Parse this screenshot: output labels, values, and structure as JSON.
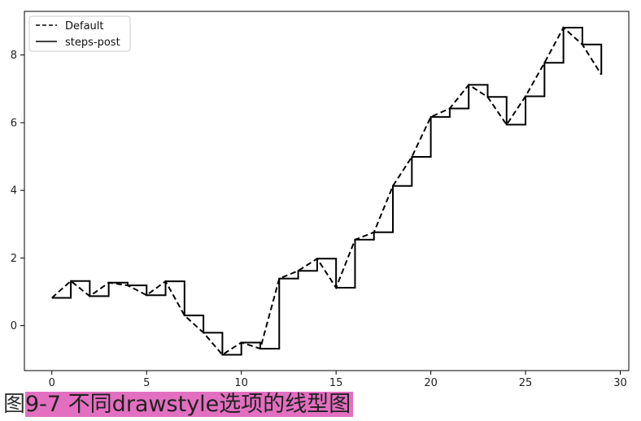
{
  "chart_data": {
    "type": "line",
    "title": "",
    "xlabel": "",
    "ylabel": "",
    "xlim": [
      -1.45,
      30.45
    ],
    "ylim": [
      -1.33,
      9.29
    ],
    "xticks": [
      0,
      5,
      10,
      15,
      20,
      25,
      30
    ],
    "yticks": [
      0,
      2,
      4,
      6,
      8
    ],
    "grid": false,
    "legend_position": "top-left",
    "x": [
      0,
      1,
      2,
      3,
      4,
      5,
      6,
      7,
      8,
      9,
      10,
      11,
      12,
      13,
      14,
      15,
      16,
      17,
      18,
      19,
      20,
      21,
      22,
      23,
      24,
      25,
      26,
      27,
      28,
      29
    ],
    "series": [
      {
        "name": "Default",
        "linestyle": "dashed",
        "drawstyle": "default",
        "color": "#000000",
        "values": [
          0.82,
          1.32,
          0.87,
          1.27,
          1.19,
          0.9,
          1.31,
          0.3,
          -0.21,
          -0.86,
          -0.5,
          -0.68,
          1.39,
          1.62,
          1.98,
          1.12,
          2.54,
          2.76,
          4.13,
          4.99,
          6.17,
          6.42,
          7.12,
          6.76,
          5.94,
          6.78,
          7.77,
          8.81,
          8.31,
          7.42
        ]
      },
      {
        "name": "steps-post",
        "linestyle": "solid",
        "drawstyle": "steps-post",
        "color": "#000000",
        "values": [
          0.82,
          1.32,
          0.87,
          1.27,
          1.19,
          0.9,
          1.31,
          0.3,
          -0.21,
          -0.86,
          -0.5,
          -0.68,
          1.39,
          1.62,
          1.98,
          1.12,
          2.54,
          2.76,
          4.13,
          4.99,
          6.17,
          6.42,
          7.12,
          6.76,
          5.94,
          6.78,
          7.77,
          8.81,
          8.31,
          7.42
        ]
      }
    ]
  },
  "caption": {
    "prefix": "图",
    "highlight": "9-7 不同drawstyle选项的线型图"
  }
}
